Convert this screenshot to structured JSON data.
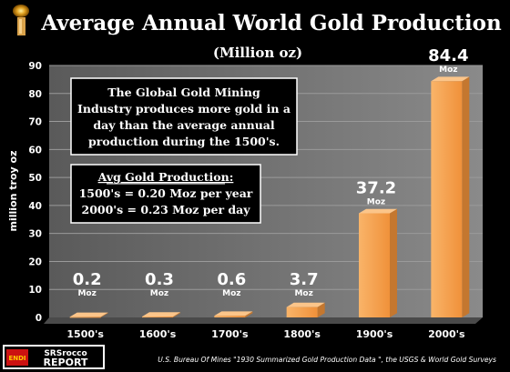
{
  "chart_data": {
    "type": "bar",
    "title": "Average Annual World Gold Production",
    "subtitle": "(Million oz)",
    "ylabel": "million troy oz",
    "xlabel": "",
    "ylim": [
      0,
      90
    ],
    "yticks": [
      0,
      10,
      20,
      30,
      40,
      50,
      60,
      70,
      80,
      90
    ],
    "categories": [
      "1500's",
      "1600's",
      "1700's",
      "1800's",
      "1900's",
      "2000's"
    ],
    "values": [
      0.2,
      0.3,
      0.6,
      3.7,
      37.2,
      84.4
    ],
    "data_labels": [
      "0.2",
      "0.3",
      "0.6",
      "3.7",
      "37.2",
      "84.4"
    ],
    "data_label_unit": "Moz",
    "grid": true,
    "colors": {
      "bar": "#F7A44E",
      "bar_side": "#C4772F",
      "plot_bg": "#777777",
      "floor": "#555555"
    }
  },
  "annotations": {
    "box1": [
      "The Global Gold Mining",
      "Industry produces more gold in a",
      "day than the average annual",
      "production during the 1500's."
    ],
    "box2_title": "Avg Gold Production:",
    "box2_lines": [
      "1500's = 0.20 Moz per year",
      "2000's = 0.23 Moz per day"
    ]
  },
  "footer": {
    "source": "U.S. Bureau Of Mines \"1930 Summarized Gold Production Data \", the USGS & World Gold Surveys",
    "logo_top": "SRSrocco",
    "logo_bottom": "REPORT",
    "logo_badge": "ENDI"
  }
}
